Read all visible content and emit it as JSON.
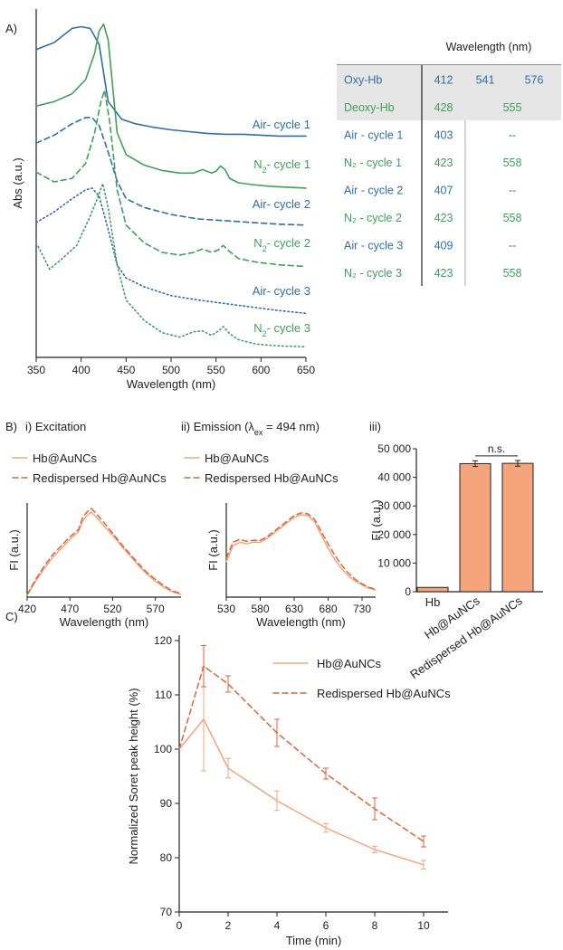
{
  "colors": {
    "blue": "#2f6ea6",
    "green": "#3fa05a",
    "orange": "#f0a77a",
    "red": "#d9653f",
    "bar": "#f5a47c",
    "shade": "#e6e6e6",
    "axis": "#222222"
  },
  "panelA": {
    "label": "A)",
    "chart_data": {
      "type": "line",
      "xlabel": "Wavelength (nm)",
      "ylabel": "Abs (a.u.)",
      "xlim": [
        350,
        650
      ],
      "xticks": [
        350,
        400,
        450,
        500,
        550,
        600,
        650
      ],
      "series": [
        {
          "name": "Air- cycle 1",
          "label_main": "Air- cycle 1",
          "label_sub": "",
          "label_tail": "",
          "style": "solid",
          "color": "blue",
          "x": [
            350,
            370,
            390,
            400,
            410,
            420,
            430,
            445,
            460,
            480,
            500,
            520,
            540,
            560,
            580,
            600,
            620,
            650
          ],
          "y": [
            46,
            38,
            22,
            20,
            22,
            40,
            105,
            125,
            130,
            134,
            137,
            139,
            141,
            142,
            142,
            143,
            144,
            144
          ]
        },
        {
          "name": "N2- cycle 1",
          "label_main": "N",
          "label_sub": "2",
          "label_tail": "- cycle 1",
          "style": "solid",
          "color": "green",
          "x": [
            350,
            370,
            390,
            405,
            415,
            420,
            425,
            430,
            440,
            450,
            470,
            490,
            510,
            525,
            535,
            545,
            550,
            555,
            560,
            565,
            575,
            590,
            610,
            630,
            650
          ],
          "y": [
            110,
            105,
            96,
            80,
            50,
            25,
            17,
            35,
            140,
            165,
            177,
            183,
            186,
            186,
            182,
            186,
            184,
            178,
            182,
            192,
            197,
            199,
            201,
            202,
            203
          ]
        },
        {
          "name": "Air- cycle 2",
          "label_main": "Air- cycle 2",
          "label_sub": "",
          "label_tail": "",
          "style": "dashed",
          "color": "blue",
          "x": [
            350,
            370,
            390,
            405,
            412,
            420,
            430,
            440,
            450,
            470,
            500,
            530,
            560,
            590,
            620,
            650
          ],
          "y": [
            152,
            143,
            130,
            123,
            123,
            132,
            162,
            195,
            215,
            225,
            233,
            238,
            240,
            242,
            244,
            245
          ]
        },
        {
          "name": "N2- cycle 2",
          "label_main": "N",
          "label_sub": "2",
          "label_tail": "- cycle 2",
          "style": "dashed",
          "color": "green",
          "x": [
            350,
            370,
            390,
            405,
            415,
            422,
            426,
            432,
            440,
            450,
            470,
            490,
            510,
            525,
            535,
            545,
            553,
            558,
            565,
            575,
            595,
            620,
            650
          ],
          "y": [
            185,
            196,
            192,
            175,
            140,
            105,
            92,
            130,
            205,
            245,
            265,
            276,
            279,
            276,
            272,
            276,
            273,
            268,
            275,
            283,
            287,
            290,
            292
          ]
        },
        {
          "name": "Air- cycle 3",
          "label_main": "Air- cycle 3",
          "label_sub": "",
          "label_tail": "",
          "style": "dotted",
          "color": "blue",
          "x": [
            350,
            370,
            390,
            405,
            412,
            420,
            430,
            440,
            450,
            470,
            500,
            530,
            560,
            590,
            620,
            650
          ],
          "y": [
            242,
            230,
            215,
            205,
            203,
            212,
            250,
            290,
            305,
            315,
            325,
            330,
            334,
            338,
            342,
            345
          ]
        },
        {
          "name": "N2- cycle 3",
          "label_main": "N",
          "label_sub": "2",
          "label_tail": "- cycle 3",
          "style": "dotted",
          "color": "green",
          "x": [
            350,
            365,
            380,
            395,
            410,
            418,
            424,
            430,
            440,
            450,
            470,
            490,
            510,
            525,
            535,
            545,
            553,
            558,
            565,
            575,
            595,
            620,
            650
          ],
          "y": [
            265,
            295,
            282,
            268,
            235,
            215,
            198,
            225,
            290,
            330,
            353,
            367,
            372,
            366,
            365,
            370,
            365,
            360,
            368,
            375,
            380,
            382,
            383
          ]
        }
      ]
    }
  },
  "tableA": {
    "header": "Wavelength (nm)",
    "rows": [
      {
        "label": "Oxy-Hb",
        "values": [
          "412",
          "541",
          "576"
        ],
        "color": "blue",
        "shaded": true
      },
      {
        "label": "Deoxy-Hb",
        "values": [
          "428",
          "555",
          ""
        ],
        "color": "green",
        "shaded": true
      },
      {
        "label": "Air - cycle 1",
        "values": [
          "403",
          "--",
          ""
        ],
        "color": "blue",
        "shaded": false
      },
      {
        "label": "N₂ - cycle 1",
        "values": [
          "423",
          "558",
          ""
        ],
        "color": "green",
        "shaded": false
      },
      {
        "label": "Air - cycle 2",
        "values": [
          "407",
          "--",
          ""
        ],
        "color": "blue",
        "shaded": false
      },
      {
        "label": "N₂ - cycle 2",
        "values": [
          "423",
          "558",
          ""
        ],
        "color": "green",
        "shaded": false
      },
      {
        "label": "Air - cycle 3",
        "values": [
          "409",
          "--",
          ""
        ],
        "color": "blue",
        "shaded": false
      },
      {
        "label": "N₂ - cycle 3",
        "values": [
          "423",
          "558",
          ""
        ],
        "color": "green",
        "shaded": false
      }
    ]
  },
  "panelB": {
    "label": "B)",
    "legend": [
      "Hb@AuNCs",
      "Redispersed Hb@AuNCs"
    ],
    "excitation": {
      "title": "i) Excitation",
      "chart_data": {
        "type": "line",
        "xlabel": "Wavelength (nm)",
        "ylabel": "FI (a.u.)",
        "xlim": [
          420,
          600
        ],
        "xticks": [
          420,
          470,
          520,
          570
        ],
        "series": [
          {
            "name": "Hb@AuNCs",
            "style": "solid",
            "color": "orange",
            "x": [
              420,
              430,
              440,
              450,
              460,
              470,
              480,
              485,
              490,
              495,
              500,
              510,
              520,
              530,
              540,
              550,
              560,
              570,
              580,
              590,
              600
            ],
            "y": [
              0.02,
              0.18,
              0.32,
              0.45,
              0.55,
              0.65,
              0.74,
              0.86,
              0.92,
              0.96,
              0.91,
              0.8,
              0.7,
              0.58,
              0.47,
              0.36,
              0.26,
              0.18,
              0.11,
              0.06,
              0.03
            ]
          },
          {
            "name": "Redispersed Hb@AuNCs",
            "style": "dashed",
            "color": "red",
            "x": [
              420,
              430,
              440,
              450,
              460,
              470,
              480,
              485,
              490,
              495,
              500,
              510,
              520,
              530,
              540,
              550,
              560,
              570,
              580,
              590,
              600
            ],
            "y": [
              0.03,
              0.2,
              0.35,
              0.48,
              0.58,
              0.68,
              0.76,
              0.9,
              0.96,
              1.0,
              0.95,
              0.84,
              0.72,
              0.6,
              0.49,
              0.38,
              0.28,
              0.2,
              0.13,
              0.07,
              0.04
            ]
          }
        ]
      }
    },
    "emission": {
      "title_pre": "ii) Emission (λ",
      "title_sub": "ex",
      "title_post": " = 494 nm)",
      "chart_data": {
        "type": "line",
        "xlabel": "Wavelength (nm)",
        "ylabel": "FI (a.u.)",
        "xlim": [
          530,
          750
        ],
        "xticks": [
          530,
          580,
          630,
          680,
          730
        ],
        "series": [
          {
            "name": "Hb@AuNCs",
            "style": "solid",
            "color": "orange",
            "x": [
              530,
              540,
              550,
              560,
              570,
              580,
              590,
              600,
              610,
              620,
              630,
              640,
              650,
              660,
              670,
              680,
              690,
              700,
              710,
              720,
              730,
              740,
              750
            ],
            "y": [
              0.4,
              0.58,
              0.62,
              0.6,
              0.62,
              0.62,
              0.66,
              0.72,
              0.78,
              0.84,
              0.9,
              0.93,
              0.92,
              0.85,
              0.7,
              0.55,
              0.42,
              0.32,
              0.24,
              0.18,
              0.14,
              0.1,
              0.08
            ]
          },
          {
            "name": "Redispersed Hb@AuNCs",
            "style": "dashed",
            "color": "red",
            "x": [
              530,
              540,
              550,
              560,
              570,
              580,
              590,
              600,
              610,
              620,
              630,
              640,
              650,
              660,
              670,
              680,
              690,
              700,
              710,
              720,
              730,
              740,
              750
            ],
            "y": [
              0.44,
              0.62,
              0.65,
              0.63,
              0.64,
              0.64,
              0.68,
              0.74,
              0.8,
              0.86,
              0.92,
              0.95,
              0.94,
              0.88,
              0.74,
              0.6,
              0.47,
              0.36,
              0.27,
              0.2,
              0.15,
              0.11,
              0.09
            ]
          }
        ]
      }
    },
    "bars": {
      "title": "iii)",
      "annotation": "n.s.",
      "chart_data": {
        "type": "bar",
        "categories": [
          "Hb",
          "Hb@AuNCs",
          "Redispersed Hb@AuNCs"
        ],
        "values": [
          1500,
          44800,
          44900
        ],
        "errors": [
          0,
          1000,
          1000
        ],
        "ylabel": "FI (a.u.)",
        "ylim": [
          0,
          50000
        ],
        "yticks": [
          0,
          10000,
          20000,
          30000,
          40000,
          50000
        ],
        "ytick_labels": [
          "0",
          "10 000",
          "20 000",
          "30 000",
          "40 000",
          "50 000"
        ]
      }
    }
  },
  "panelC": {
    "label": "C)",
    "chart_data": {
      "type": "line",
      "xlabel": "Time (min)",
      "ylabel": "Normalized Soret peak height (%)",
      "xlim": [
        0,
        11
      ],
      "ylim": [
        70,
        120
      ],
      "xticks": [
        0,
        2,
        4,
        6,
        8,
        10
      ],
      "yticks": [
        70,
        80,
        90,
        100,
        110,
        120
      ],
      "series": [
        {
          "name": "Hb@AuNCs",
          "style": "solid",
          "color": "orange",
          "x": [
            0,
            1,
            2,
            4,
            6,
            8,
            10
          ],
          "y": [
            100,
            105.5,
            96.5,
            90.5,
            85.5,
            81.5,
            78.7
          ],
          "err": [
            0,
            9.5,
            1.8,
            1.8,
            0.8,
            0.6,
            0.8
          ]
        },
        {
          "name": "Redispersed Hb@AuNCs",
          "style": "dashed",
          "color": "red",
          "x": [
            0,
            1,
            2,
            4,
            6,
            8,
            10
          ],
          "y": [
            100,
            115.3,
            112,
            103,
            95.5,
            89,
            83
          ],
          "err": [
            0,
            3.8,
            1.5,
            2.5,
            1,
            2,
            1
          ]
        }
      ]
    }
  }
}
